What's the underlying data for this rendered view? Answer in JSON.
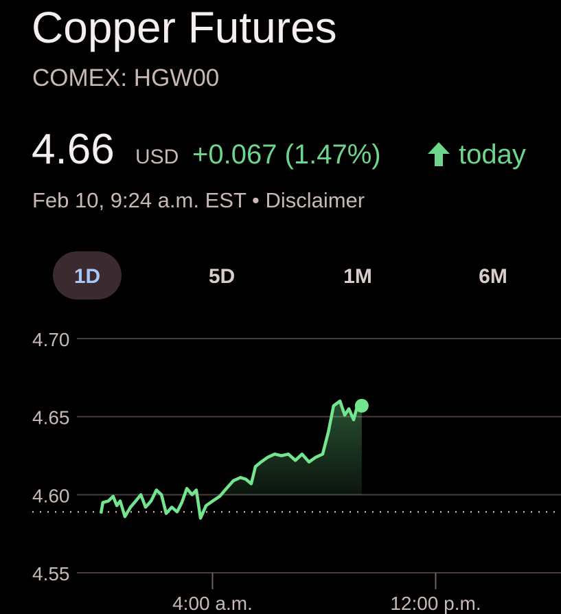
{
  "header": {
    "title": "Copper Futures",
    "subtitle": "COMEX: HGW00",
    "price": "4.66",
    "currency": "USD",
    "change": "+0.067 (1.47%)",
    "period": "today",
    "timestamp": "Feb 10, 9:24 a.m. EST",
    "separator": "•",
    "disclaimer": "Disclaimer"
  },
  "tabs": [
    "1D",
    "5D",
    "1M",
    "6M"
  ],
  "chart_data": {
    "type": "line",
    "x": [
      0,
      0.07,
      0.27,
      0.44,
      0.57,
      0.69,
      0.86,
      1.06,
      1.25,
      1.43,
      1.6,
      1.8,
      1.99,
      2.17,
      2.34,
      2.54,
      2.73,
      2.9,
      3.08,
      3.27,
      3.42,
      3.57,
      3.77,
      4.01,
      4.26,
      4.5,
      4.75,
      5.0,
      5.19,
      5.39,
      5.54,
      5.74,
      5.98,
      6.23,
      6.47,
      6.72,
      6.97,
      7.21,
      7.46,
      7.7,
      7.95,
      8.15,
      8.34,
      8.57,
      8.74,
      8.89,
      9.06,
      9.18,
      9.35
    ],
    "series": [
      {
        "color": "#74e58f",
        "values": [
          4.588,
          4.595,
          4.596,
          4.599,
          4.593,
          4.596,
          4.586,
          4.592,
          4.596,
          4.6,
          4.592,
          4.596,
          4.603,
          4.6,
          4.588,
          4.592,
          4.589,
          4.595,
          4.604,
          4.6,
          4.603,
          4.585,
          4.593,
          4.596,
          4.599,
          4.604,
          4.609,
          4.611,
          4.61,
          4.607,
          4.618,
          4.621,
          4.624,
          4.626,
          4.625,
          4.626,
          4.622,
          4.626,
          4.621,
          4.624,
          4.626,
          4.64,
          4.657,
          4.66,
          4.651,
          4.655,
          4.648,
          4.656,
          4.657
        ]
      }
    ],
    "reference_value": 4.589,
    "xlim": [
      -2.5,
      16.5
    ],
    "xticks": [
      {
        "value": 4,
        "label": "4:00 a.m."
      },
      {
        "value": 12,
        "label": "12:00 p.m."
      }
    ],
    "ylim": [
      4.55,
      4.7
    ],
    "yticks": [
      {
        "value": 4.7,
        "label": "4.70"
      },
      {
        "value": 4.65,
        "label": "4.65"
      },
      {
        "value": 4.6,
        "label": "4.60"
      },
      {
        "value": 4.55,
        "label": "4.55"
      }
    ],
    "grid": true
  }
}
